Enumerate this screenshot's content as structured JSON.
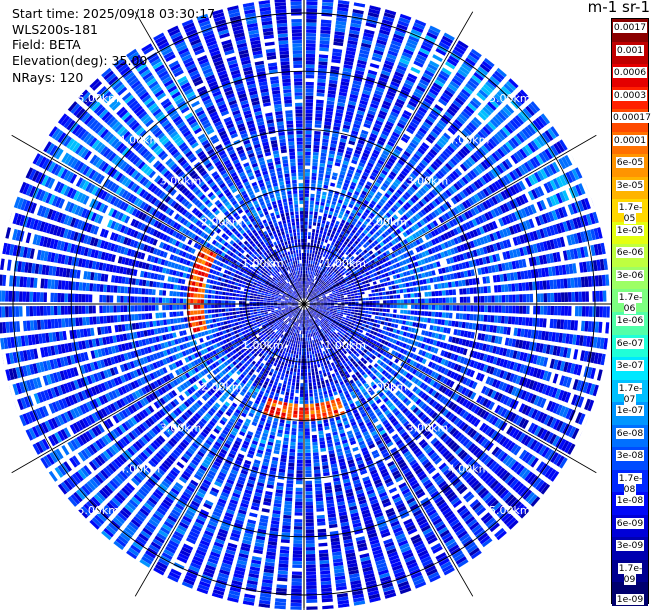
{
  "info": {
    "start_time": "Start time: 2025/09/18 03:30:17",
    "instrument": "WLS200s-181",
    "field": "Field: BETA",
    "elevation": "Elevation(deg): 35.00",
    "nrays": "NRays: 120"
  },
  "colorbar": {
    "title": "m-1 sr-1",
    "labels": [
      "0.0017",
      "0.001",
      "0.0006",
      "0.0003",
      "0.00017",
      "0.0001",
      "6e-05",
      "3e-05",
      "1.7e-05",
      "1e-05",
      "6e-06",
      "3e-06",
      "1.7e-06",
      "1e-06",
      "6e-07",
      "3e-07",
      "1.7e-07",
      "1e-07",
      "6e-08",
      "3e-08",
      "1.7e-08",
      "1e-08",
      "6e-09",
      "3e-09",
      "1.7e-09",
      "1e-09"
    ],
    "colors": [
      "#8b0000",
      "#c00000",
      "#e40000",
      "#ff2000",
      "#ff4a00",
      "#ff7000",
      "#ff9400",
      "#ffb400",
      "#ffd800",
      "#e4ff10",
      "#bfff40",
      "#9dff64",
      "#7dff80",
      "#52ffa8",
      "#20ffd8",
      "#00e8ff",
      "#00c0ff",
      "#0096ff",
      "#0070ff",
      "#004cff",
      "#0028ff",
      "#0008f8",
      "#0000d8",
      "#0000b0",
      "#000090",
      "#00006e"
    ]
  },
  "chart_data": {
    "type": "polar-ppi",
    "field": "BETA",
    "units": "m-1 sr-1",
    "nrays": 120,
    "range_rings_km": [
      1.0,
      2.0,
      3.0,
      4.0,
      5.0
    ],
    "range_labels": [
      "1.00km",
      "2.00km",
      "3.00km",
      "4.00km",
      "5.00km"
    ],
    "max_range_km": 5.5,
    "colorscale": "log",
    "value_range": [
      1e-09,
      0.0017
    ],
    "features": [
      {
        "azimuth_deg": [
          255,
          300
        ],
        "range_km": [
          1.75,
          2.05
        ],
        "beta_approx": 0.0002
      },
      {
        "azimuth_deg": [
          160,
          200
        ],
        "range_km": [
          1.75,
          2.05
        ],
        "beta_approx": 0.0002
      }
    ]
  }
}
